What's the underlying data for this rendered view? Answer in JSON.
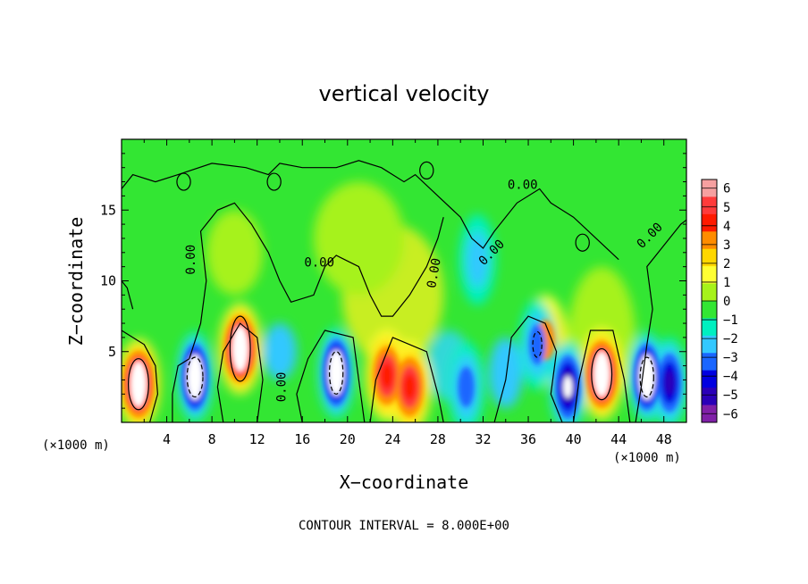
{
  "chart_data": {
    "type": "heatmap",
    "title": "vertical velocity",
    "xlabel": "X−coordinate",
    "ylabel": "Z−coordinate",
    "x_unit_left": "(×1000 m)",
    "x_unit_right": "(×1000 m)",
    "xlim": [
      0,
      50
    ],
    "ylim": [
      0,
      20
    ],
    "x_ticks": [
      4,
      8,
      12,
      16,
      20,
      24,
      28,
      32,
      36,
      40,
      44,
      48
    ],
    "y_ticks": [
      5,
      10,
      15
    ],
    "colorbar": {
      "levels": [
        6,
        5,
        4,
        3,
        2,
        1,
        0,
        -1,
        -2,
        -3,
        -4,
        -5,
        -6
      ],
      "labels": [
        "6",
        "5",
        "4",
        "3",
        "2",
        "1",
        "0",
        "−1",
        "−2",
        "−3",
        "−4",
        "−5",
        "−6"
      ],
      "colors": [
        "#f6a0a0",
        "#ff3b3b",
        "#ff1a00",
        "#ff8c00",
        "#ffd700",
        "#ffff33",
        "#a6f21a",
        "#33e633",
        "#00f0c0",
        "#33c8ff",
        "#1a66ff",
        "#0000e0",
        "#2a00b8",
        "#8020a8"
      ]
    },
    "contour_labels": [
      "0.00",
      "0.00",
      "0.00",
      "0.00",
      "0.00",
      "0.00",
      "0.00"
    ],
    "updrafts": [
      {
        "x": 1.5,
        "z": 2.7,
        "w": 8
      },
      {
        "x": 10.5,
        "z": 5.2,
        "w": 8
      },
      {
        "x": 23.5,
        "z": 3.3,
        "w": 6
      },
      {
        "x": 25.5,
        "z": 2.5,
        "w": 6
      },
      {
        "x": 37.5,
        "z": 5.8,
        "w": 4
      },
      {
        "x": 42.5,
        "z": 3.4,
        "w": 8
      }
    ],
    "downdrafts": [
      {
        "x": 6.5,
        "z": 3.2,
        "w": -8
      },
      {
        "x": 19.0,
        "z": 3.5,
        "w": -8
      },
      {
        "x": 30.5,
        "z": 2.5,
        "w": -4
      },
      {
        "x": 36.8,
        "z": 5.5,
        "w": -4
      },
      {
        "x": 39.5,
        "z": 2.5,
        "w": -7
      },
      {
        "x": 46.5,
        "z": 3.2,
        "w": -8
      },
      {
        "x": 48.5,
        "z": 2.8,
        "w": -6
      },
      {
        "x": 31.5,
        "z": 11.5,
        "w": -2.5
      }
    ],
    "note_contour_interval": "CONTOUR INTERVAL = 8.000E+00"
  }
}
